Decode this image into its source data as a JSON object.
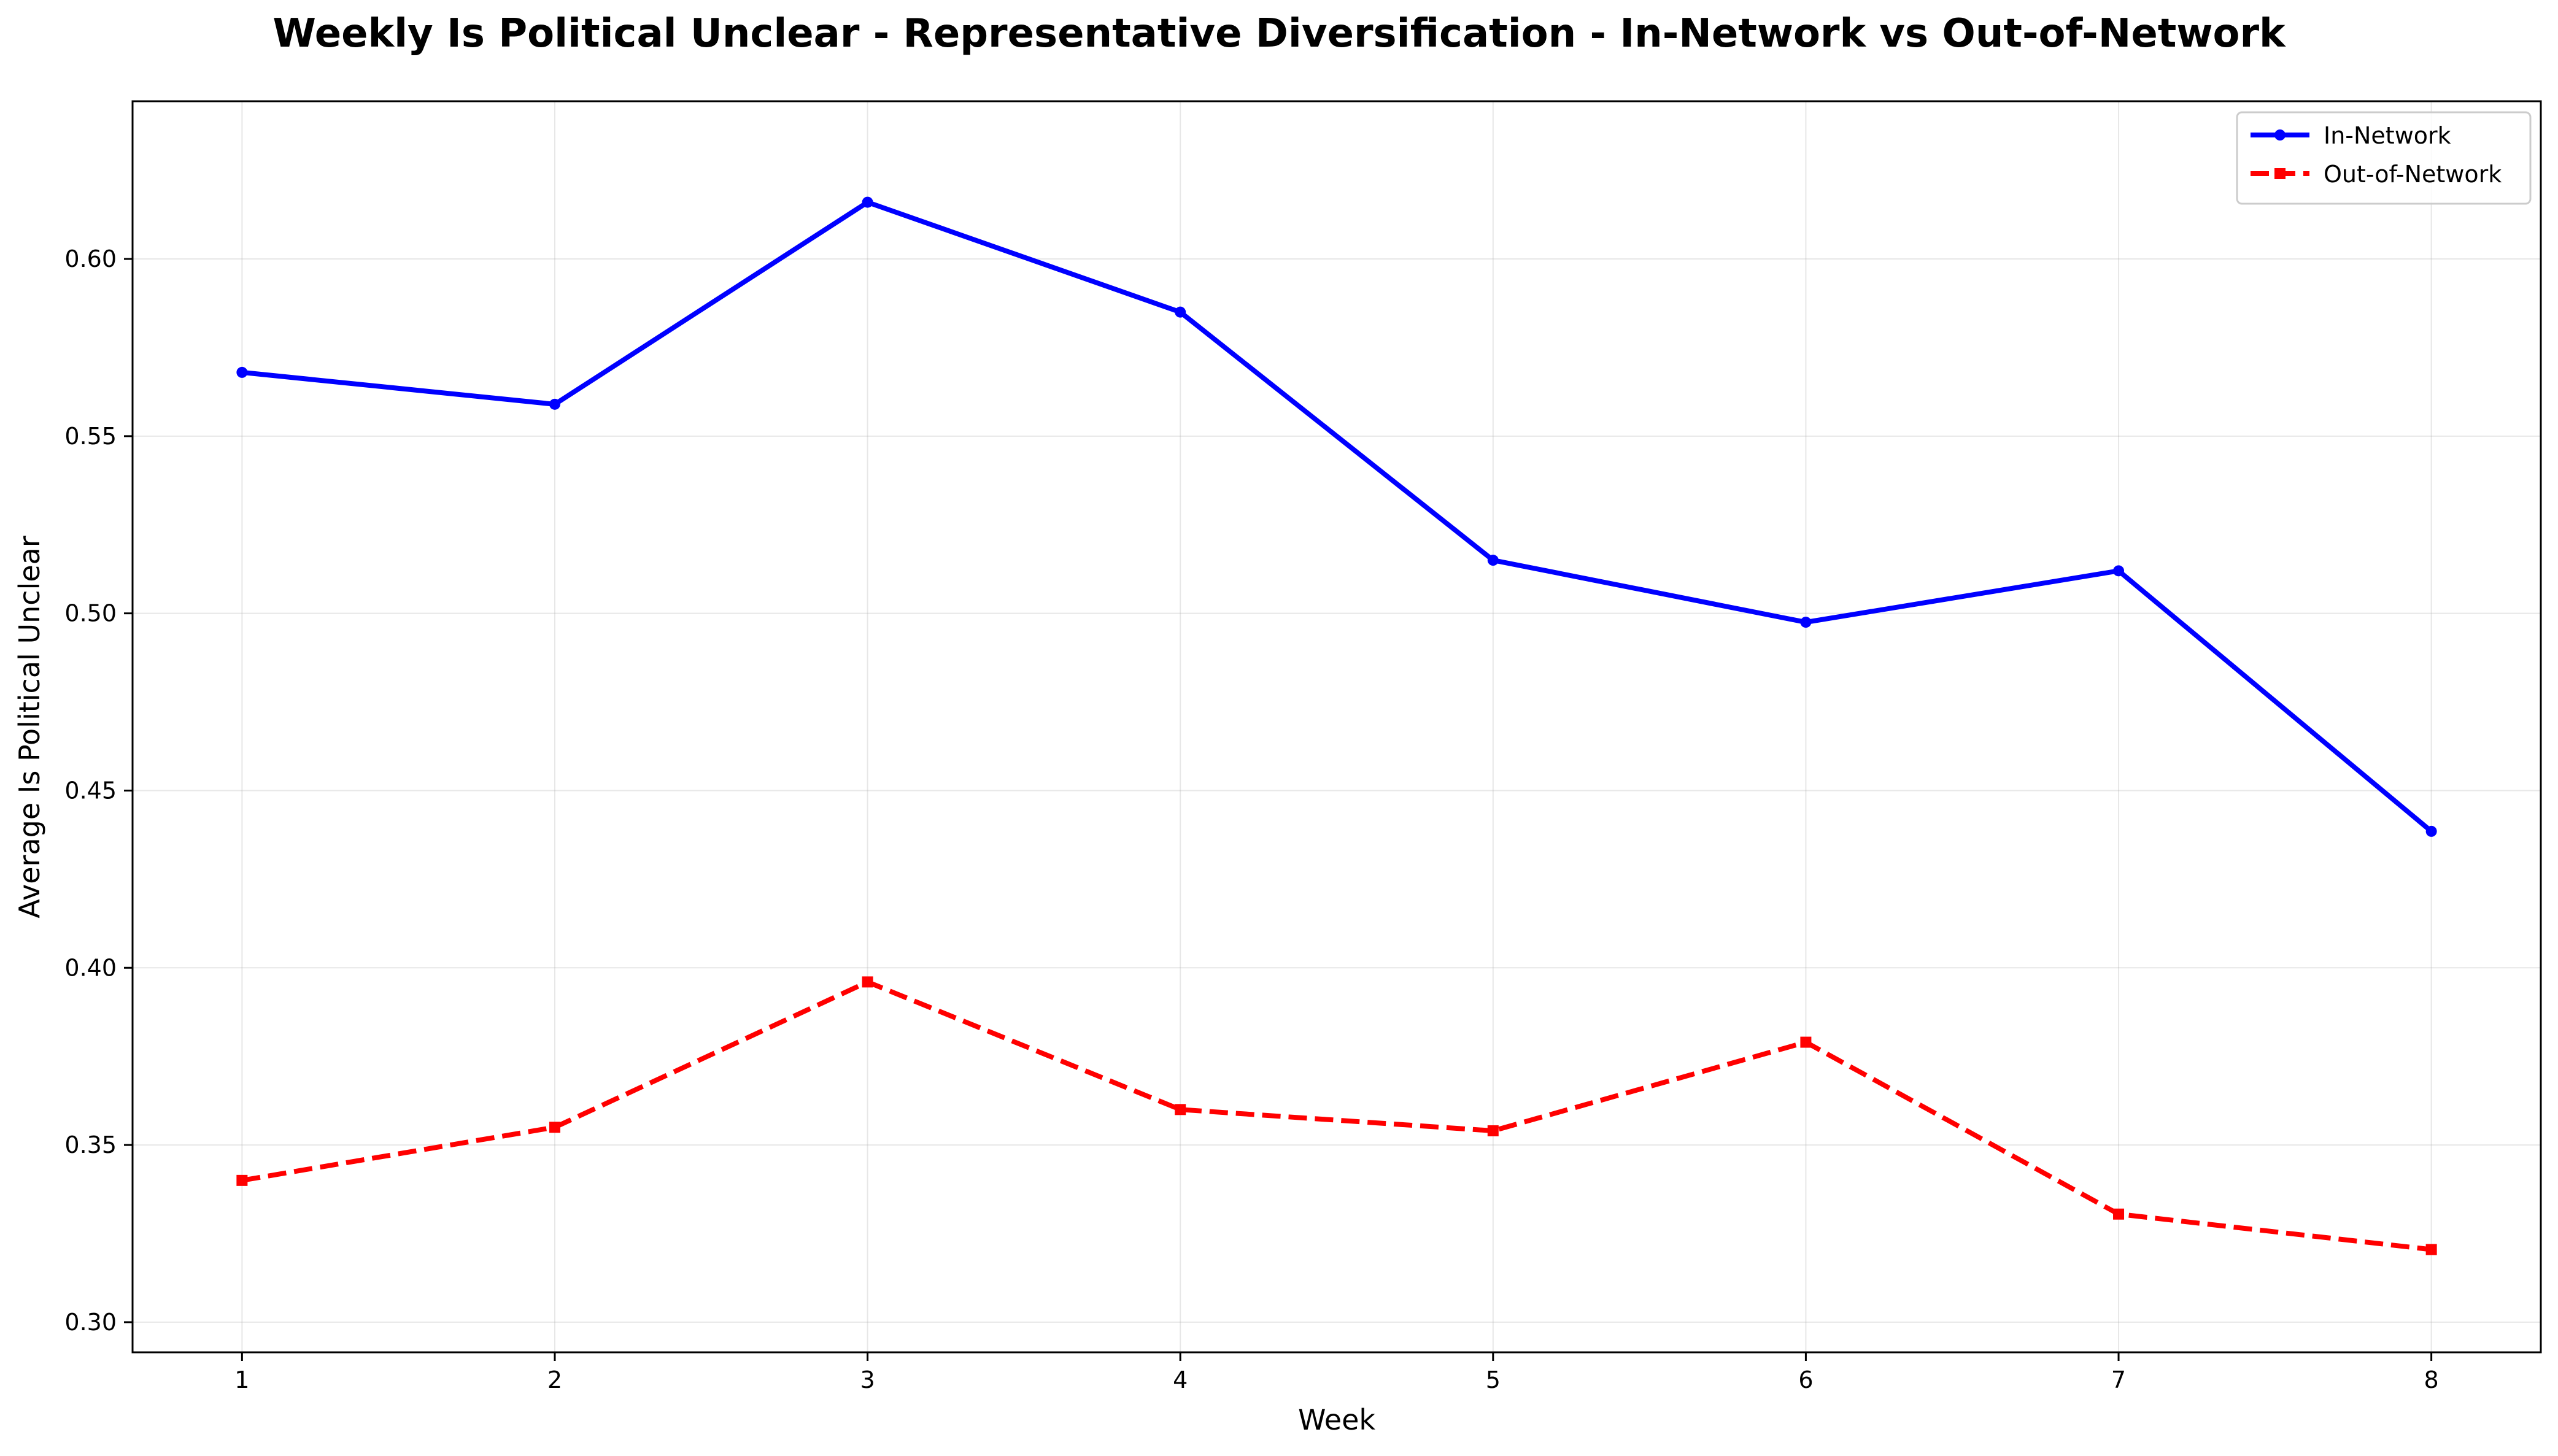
{
  "chart_data": {
    "type": "line",
    "title": "Weekly Is Political Unclear - Representative Diversification - In-Network vs Out-of-Network",
    "xlabel": "Week",
    "ylabel": "Average Is Political Unclear",
    "x": [
      1,
      2,
      3,
      4,
      5,
      6,
      7,
      8
    ],
    "x_tick_labels": [
      "1",
      "2",
      "3",
      "4",
      "5",
      "6",
      "7",
      "8"
    ],
    "xlim": [
      0.65,
      8.35
    ],
    "ylim": [
      0.2915,
      0.6445
    ],
    "y_ticks": [
      0.3,
      0.35,
      0.4,
      0.45,
      0.5,
      0.55,
      0.6
    ],
    "y_tick_labels": [
      "0.30",
      "0.35",
      "0.40",
      "0.45",
      "0.50",
      "0.55",
      "0.60"
    ],
    "grid": true,
    "legend_position": "top-right",
    "series": [
      {
        "name": "In-Network",
        "values": [
          0.568,
          0.559,
          0.616,
          0.585,
          0.515,
          0.4975,
          0.512,
          0.4385
        ],
        "color": "#0000ff",
        "line_style": "solid",
        "marker": "circle"
      },
      {
        "name": "Out-of-Network",
        "values": [
          0.34,
          0.355,
          0.396,
          0.36,
          0.354,
          0.379,
          0.3305,
          0.3205
        ],
        "color": "#ff0000",
        "line_style": "dashed",
        "marker": "square"
      }
    ]
  }
}
